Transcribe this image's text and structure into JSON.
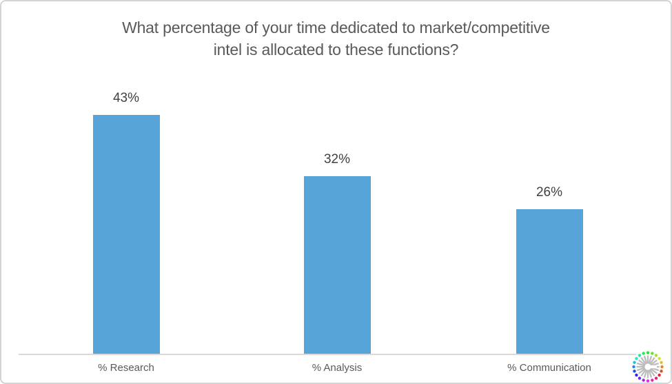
{
  "title": {
    "line1": "What percentage of your time dedicated to market/competitive",
    "line2": "intel is allocated to these functions?"
  },
  "chart_data": {
    "type": "bar",
    "title": "What percentage of your time dedicated to market/competitive intel is allocated to these functions?",
    "categories": [
      "% Research",
      "% Analysis",
      "% Communication"
    ],
    "values": [
      43,
      32,
      26
    ],
    "data_labels": [
      "43%",
      "32%",
      "26%"
    ],
    "unit": "percent",
    "xlabel": "",
    "ylabel": "",
    "ylim": [
      0,
      50
    ],
    "grid": false,
    "legend": false,
    "y_axis_visible": false,
    "bar_color": "#57A4D8",
    "axis_line_color": "#d9d9d9",
    "title_color": "#595959",
    "value_label_color": "#404040",
    "category_label_color": "#595959"
  },
  "logo": {
    "icon": "starburst-icon",
    "ray_color": "#bcbcbc"
  }
}
